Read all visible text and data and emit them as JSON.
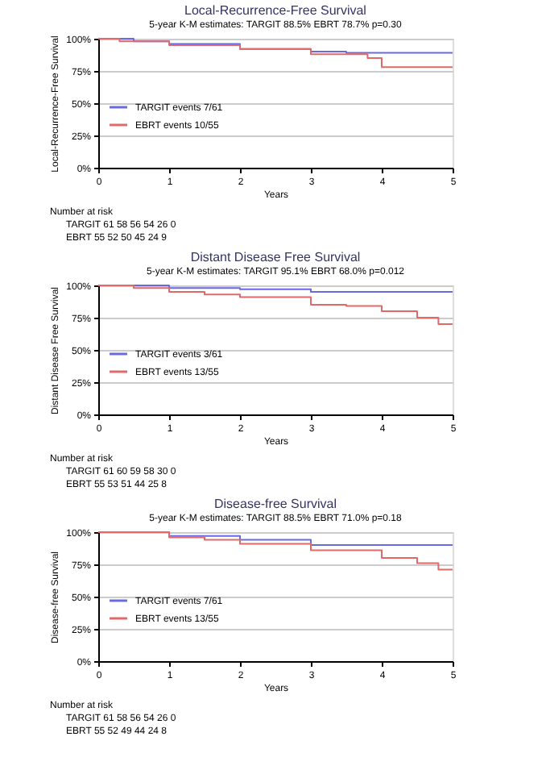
{
  "chart_data": [
    {
      "type": "step",
      "title": "Local-Recurrence-Free Survival",
      "subtitle": "5-year K-M estimates: TARGIT 88.5% EBRT 78.7% p=0.30",
      "xlabel": "Years",
      "ylabel": "Local-Recurrence-Free Survival",
      "xlim": [
        0,
        5
      ],
      "xticks": [
        0,
        1,
        2,
        3,
        4,
        5
      ],
      "ylim": [
        0,
        100
      ],
      "yticks": [
        {
          "value": 0,
          "label": "0%"
        },
        {
          "value": 25,
          "label": "25%"
        },
        {
          "value": 50,
          "label": "50%"
        },
        {
          "value": 75,
          "label": "75%"
        },
        {
          "value": 100,
          "label": "100%"
        }
      ],
      "grid": "y",
      "legend": "left",
      "series": [
        {
          "name": "TARGIT events 7/61",
          "color": "#6a6ae0",
          "x": [
            0,
            0.5,
            1,
            2,
            3,
            3.5,
            5
          ],
          "values": [
            100,
            98,
            96,
            92,
            90,
            89,
            89
          ]
        },
        {
          "name": "EBRT events 10/55",
          "color": "#e06a6a",
          "x": [
            0,
            0.3,
            1,
            2,
            3,
            3.8,
            4,
            5
          ],
          "values": [
            100,
            98,
            95,
            92,
            88,
            85,
            78,
            78
          ]
        }
      ],
      "annotations": [
        "Number at risk",
        "TARGIT   61   58   56   54   26   0",
        "EBRT   55   52   50   45   24   9"
      ]
    },
    {
      "type": "step",
      "title": "Distant Disease Free Survival",
      "subtitle": "5-year K-M estimates: TARGIT 95.1% EBRT 68.0% p=0.012",
      "xlabel": "Years",
      "ylabel": "Distant Disease Free Survival",
      "xlim": [
        0,
        5
      ],
      "xticks": [
        0,
        1,
        2,
        3,
        4,
        5
      ],
      "ylim": [
        0,
        100
      ],
      "yticks": [
        {
          "value": 0,
          "label": "0%"
        },
        {
          "value": 25,
          "label": "25%"
        },
        {
          "value": 50,
          "label": "50%"
        },
        {
          "value": 75,
          "label": "75%"
        },
        {
          "value": 100,
          "label": "100%"
        }
      ],
      "grid": "y",
      "legend": "left",
      "series": [
        {
          "name": "TARGIT events 3/61",
          "color": "#6a6ae0",
          "x": [
            0,
            1,
            2,
            3,
            5
          ],
          "values": [
            100,
            98,
            97,
            95,
            95
          ]
        },
        {
          "name": "EBRT events 13/55",
          "color": "#e06a6a",
          "x": [
            0,
            0.5,
            1,
            1.5,
            2,
            3,
            3.5,
            4,
            4.5,
            4.8,
            5
          ],
          "values": [
            100,
            98,
            95,
            93,
            91,
            85,
            84,
            80,
            75,
            70,
            70
          ]
        }
      ],
      "annotations": [
        "Number at risk",
        "TARGIT   61   60   59   58   30   0",
        "EBRT   55   53   51   44   25   8"
      ]
    },
    {
      "type": "step",
      "title": "Disease-free Survival",
      "subtitle": "5-year K-M estimates: TARGIT 88.5% EBRT 71.0% p=0.18",
      "xlabel": "Years",
      "ylabel": "Disease-free Survival",
      "xlim": [
        0,
        5
      ],
      "xticks": [
        0,
        1,
        2,
        3,
        4,
        5
      ],
      "ylim": [
        0,
        100
      ],
      "yticks": [
        {
          "value": 0,
          "label": "0%"
        },
        {
          "value": 25,
          "label": "25%"
        },
        {
          "value": 50,
          "label": "50%"
        },
        {
          "value": 75,
          "label": "75%"
        },
        {
          "value": 100,
          "label": "100%"
        }
      ],
      "grid": "y",
      "legend": "left",
      "series": [
        {
          "name": "TARGIT events 7/61",
          "color": "#6a6ae0",
          "x": [
            0,
            1,
            2,
            3,
            5
          ],
          "values": [
            100,
            97,
            94,
            90,
            90
          ]
        },
        {
          "name": "EBRT events 13/55",
          "color": "#e06a6a",
          "x": [
            0,
            1,
            1.5,
            2,
            3,
            4,
            4.5,
            4.8,
            5
          ],
          "values": [
            100,
            96,
            94,
            91,
            86,
            80,
            76,
            71,
            71
          ]
        }
      ],
      "annotations": [
        "Number at risk",
        "TARGIT   61   58   56   54   26   0",
        "EBRT   55   52   49   44   24   8"
      ]
    }
  ]
}
